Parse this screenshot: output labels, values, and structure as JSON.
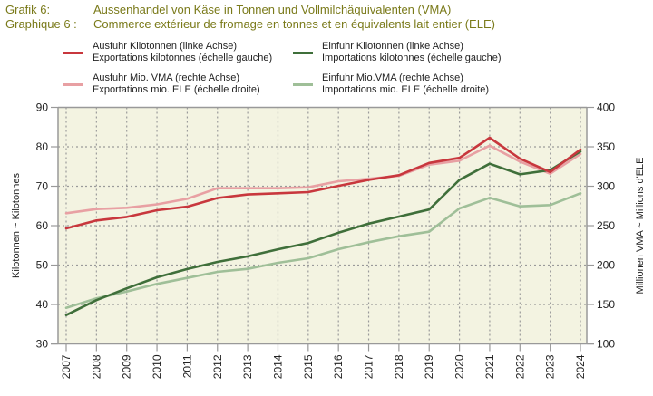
{
  "header": {
    "de_label": "Grafik 6:",
    "de_title": "Aussenhandel von Käse in Tonnen und Vollmilchäquivalenten (VMA)",
    "fr_label": "Graphique 6 :",
    "fr_title": "Commerce extérieur de fromage en tonnes et en équivalents lait entier (ELE)"
  },
  "colors": {
    "title": "#7a7a1a",
    "plot_bg": "#f3f3e1",
    "grid": "#9a9a9a",
    "axis": "#999999",
    "exports_kt": "#c8373d",
    "exports_vma": "#e8a0a3",
    "imports_kt": "#3f6f3a",
    "imports_vma": "#9fbf98"
  },
  "chart_data": {
    "type": "line",
    "title": "Aussenhandel von Käse in Tonnen und Vollmilchäquivalenten (VMA)",
    "subtitle": "Commerce extérieur de fromage en tonnes et en équivalents lait entier (ELE)",
    "xlabel": "",
    "ylabel_left": [
      "Kilotonnen",
      "~",
      "Kilotonnes"
    ],
    "ylabel_right": [
      "Millionen VMA",
      "~",
      "Millions d'ELE"
    ],
    "x": [
      "2007",
      "2008",
      "2009",
      "2010",
      "2011",
      "2012",
      "2013",
      "2014",
      "2015",
      "2016",
      "2017",
      "2018",
      "2019",
      "2020",
      "2021",
      "2022",
      "2023",
      "2024"
    ],
    "ylim_left": [
      30,
      90
    ],
    "yticks_left": [
      30,
      40,
      50,
      60,
      70,
      80,
      90
    ],
    "ylim_right": [
      100,
      400
    ],
    "yticks_right": [
      100,
      150,
      200,
      250,
      300,
      350,
      400
    ],
    "grid": true,
    "legend_position": "top",
    "series": [
      {
        "key": "exports_kt",
        "axis": "left",
        "name_de": "Ausfuhr Kilotonnen (linke Achse)",
        "name_fr": "Exportations kilotonnes (échelle gauche)",
        "values": [
          59.3,
          61.3,
          62.2,
          63.9,
          64.8,
          67.0,
          67.9,
          68.2,
          68.5,
          70.1,
          71.6,
          72.8,
          75.9,
          77.2,
          82.3,
          77.0,
          73.6,
          79.3
        ]
      },
      {
        "key": "imports_kt",
        "axis": "left",
        "name_de": "Einfuhr Kilotonnen (linke Achse)",
        "name_fr": "Importations kilotonnes (échelle gauche)",
        "values": [
          37.3,
          41.1,
          44.1,
          46.9,
          49.0,
          50.8,
          52.2,
          54.0,
          55.6,
          58.2,
          60.5,
          62.3,
          64.1,
          71.6,
          75.7,
          73.0,
          74.1,
          78.8
        ]
      },
      {
        "key": "exports_vma",
        "axis": "right",
        "name_de": "Ausfuhr Mio. VMA (rechte Achse)",
        "name_fr": "Exportations mio. ELE (échelle droite)",
        "values": [
          265.7,
          271.0,
          272.6,
          277.0,
          284.0,
          297.5,
          297.5,
          297.5,
          298.6,
          306.3,
          309.4,
          313.2,
          327.4,
          332.4,
          351.5,
          331.3,
          315.9,
          340.8
        ]
      },
      {
        "key": "imports_vma",
        "axis": "right",
        "name_de": "Einfuhr Mio.VMA (rechte Achse)",
        "name_fr": "Importations mio. ELE (échelle droite)",
        "values": [
          145.7,
          157.7,
          166.4,
          176.1,
          183.7,
          191.4,
          195.2,
          202.9,
          208.6,
          220.1,
          229.0,
          236.6,
          242.3,
          271.8,
          285.3,
          274.5,
          276.1,
          291.0
        ]
      }
    ]
  }
}
